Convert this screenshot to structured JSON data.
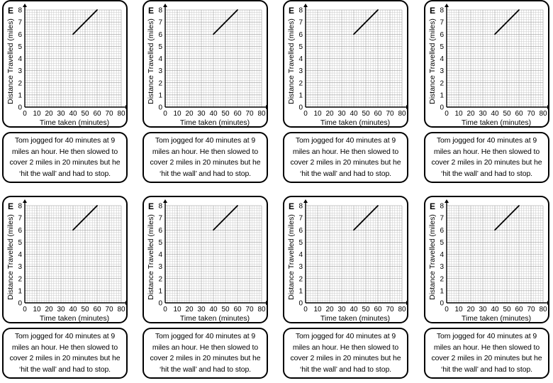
{
  "card_letter": "E",
  "story_text": "Tom jogged for 40 minutes at 9 miles an hour.  He then slowed to cover 2 miles in 20 minutes but he ‘hit the wall’ and had to stop.",
  "chart_data": {
    "type": "line",
    "xlabel": "Time taken (minutes)",
    "ylabel": "Distance Travelled (miles)",
    "x_ticks": [
      "0",
      "10",
      "20",
      "30",
      "40",
      "50",
      "60",
      "70",
      "80"
    ],
    "y_ticks": [
      "0",
      "1",
      "2",
      "3",
      "4",
      "5",
      "6",
      "7",
      "8"
    ],
    "xlim": [
      0,
      80
    ],
    "ylim": [
      0,
      8
    ],
    "grid": true,
    "series": [
      {
        "x": [
          40,
          60
        ],
        "y": [
          6,
          8
        ]
      }
    ]
  }
}
